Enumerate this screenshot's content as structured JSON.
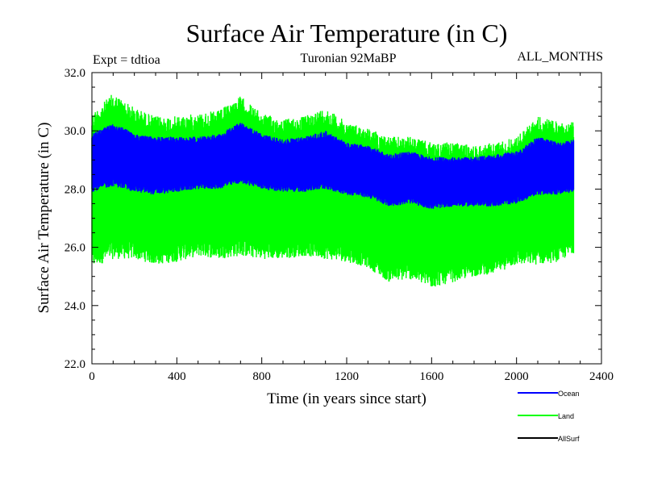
{
  "chart_data": {
    "type": "line",
    "title": "Surface Air Temperature (in C)",
    "subtitle": "Turonian  92MaBP",
    "left_label": "Expt = tdtioa",
    "right_label": "ALL_MONTHS",
    "xlabel": "Time (in years since start)",
    "ylabel": "Surface Air Temperature (in C)",
    "xlim": [
      0,
      2400
    ],
    "ylim": [
      22.0,
      32.0
    ],
    "xticks": [
      0,
      400,
      800,
      1200,
      1600,
      2000,
      2400
    ],
    "xtick_labels": [
      "0",
      "400",
      "800",
      "1200",
      "1600",
      "2000",
      "2400"
    ],
    "yticks": [
      22,
      24,
      26,
      28,
      30,
      32
    ],
    "ytick_labels": [
      "22.0",
      "24.0",
      "26.0",
      "28.0",
      "30.0",
      "32.0"
    ],
    "x_end": 2270,
    "series": [
      {
        "name": "Land",
        "color": "#00ff00",
        "x": [
          0,
          100,
          200,
          300,
          400,
          500,
          600,
          700,
          800,
          900,
          1000,
          1100,
          1200,
          1300,
          1400,
          1500,
          1600,
          1700,
          1800,
          1900,
          2000,
          2100,
          2200,
          2270
        ],
        "upper": [
          30.6,
          31.3,
          30.8,
          30.5,
          30.5,
          30.6,
          30.7,
          31.2,
          30.6,
          30.4,
          30.5,
          30.8,
          30.3,
          30.1,
          29.8,
          29.8,
          29.6,
          29.6,
          29.5,
          29.6,
          29.8,
          30.5,
          30.3,
          30.3
        ],
        "lower": [
          25.3,
          25.6,
          25.6,
          25.4,
          25.5,
          25.7,
          25.6,
          25.7,
          25.6,
          25.6,
          25.7,
          25.6,
          25.5,
          25.3,
          24.8,
          24.9,
          24.6,
          24.8,
          25.0,
          25.1,
          25.4,
          25.4,
          25.5,
          25.8
        ]
      },
      {
        "name": "Ocean",
        "color": "#0000ff",
        "x": [
          0,
          100,
          200,
          300,
          400,
          500,
          600,
          700,
          800,
          900,
          1000,
          1100,
          1200,
          1300,
          1400,
          1500,
          1600,
          1700,
          1800,
          1900,
          2000,
          2100,
          2200,
          2270
        ],
        "upper": [
          29.9,
          30.3,
          29.9,
          29.8,
          29.8,
          29.8,
          29.9,
          30.3,
          29.9,
          29.7,
          29.8,
          30.0,
          29.6,
          29.5,
          29.2,
          29.3,
          29.1,
          29.1,
          29.1,
          29.2,
          29.3,
          29.8,
          29.6,
          29.7
        ],
        "lower": [
          27.9,
          28.1,
          27.9,
          27.8,
          27.9,
          28.0,
          28.0,
          28.2,
          28.0,
          27.9,
          27.9,
          28.0,
          27.8,
          27.7,
          27.4,
          27.5,
          27.3,
          27.4,
          27.4,
          27.4,
          27.5,
          27.8,
          27.8,
          27.9
        ]
      }
    ],
    "legend": [
      {
        "name": "Ocean",
        "color": "#0000ff"
      },
      {
        "name": "Land",
        "color": "#00ff00"
      },
      {
        "name": "AllSurf",
        "color": "#000000"
      }
    ]
  }
}
